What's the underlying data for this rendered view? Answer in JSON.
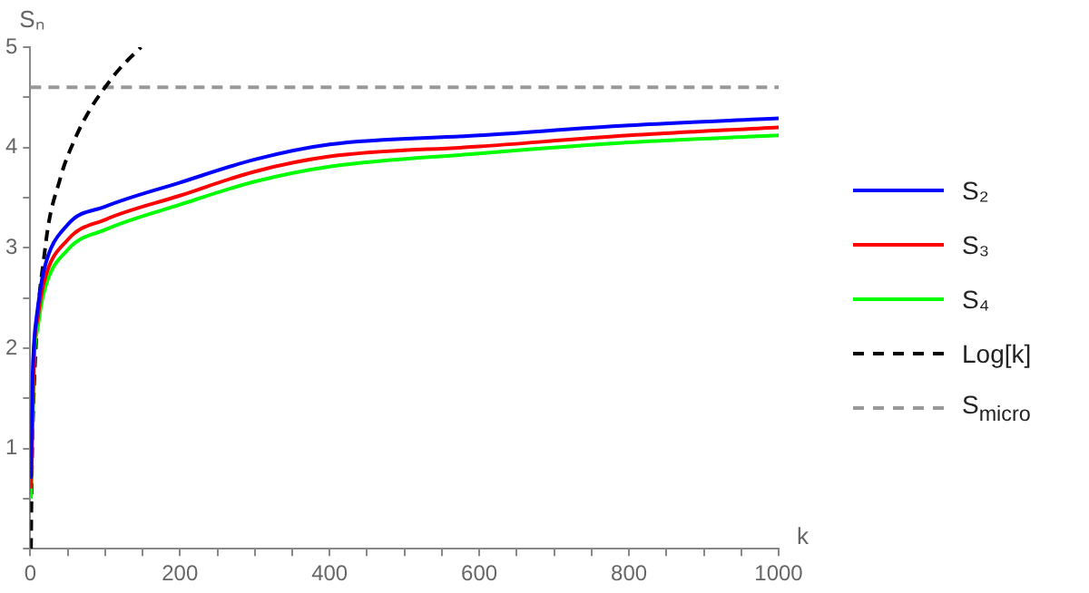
{
  "chart_data": {
    "type": "line",
    "xlabel": "k",
    "ylabel": "Sₙ",
    "xlim": [
      0,
      1000
    ],
    "ylim": [
      0,
      5
    ],
    "xticks": [
      0,
      {
        "value": 50,
        "label": null
      },
      {
        "value": 100,
        "label": null
      },
      {
        "value": 150,
        "label": null
      },
      200,
      {
        "value": 250,
        "label": null
      },
      {
        "value": 300,
        "label": null
      },
      {
        "value": 350,
        "label": null
      },
      400,
      {
        "value": 450,
        "label": null
      },
      {
        "value": 500,
        "label": null
      },
      {
        "value": 550,
        "label": null
      },
      600,
      {
        "value": 650,
        "label": null
      },
      {
        "value": 700,
        "label": null
      },
      {
        "value": 750,
        "label": null
      },
      800,
      {
        "value": 850,
        "label": null
      },
      {
        "value": 900,
        "label": null
      },
      {
        "value": 950,
        "label": null
      },
      1000
    ],
    "yticks": [
      {
        "value": 0,
        "label": null
      },
      {
        "value": 0.5,
        "label": null
      },
      1,
      {
        "value": 1.5,
        "label": null
      },
      2,
      {
        "value": 2.5,
        "label": null
      },
      3,
      {
        "value": 3.5,
        "label": null
      },
      4,
      {
        "value": 4.5,
        "label": null
      },
      5
    ],
    "grid": false,
    "legend": "right",
    "marker": "none",
    "series": [
      {
        "name": "S₂",
        "color": "#0000ff",
        "line_style": "solid",
        "x": [
          1,
          2,
          3,
          5,
          10,
          18,
          50,
          100,
          200,
          300,
          400,
          600,
          800,
          1000
        ],
        "values": [
          0.7,
          1.3,
          1.7,
          2.05,
          2.4,
          2.77,
          3.23,
          3.41,
          3.65,
          3.88,
          4.03,
          4.12,
          4.22,
          4.29
        ]
      },
      {
        "name": "S₃",
        "color": "#ff0000",
        "line_style": "solid",
        "x": [
          1,
          5,
          10,
          18,
          50,
          100,
          200,
          300,
          400,
          600,
          800,
          1000
        ],
        "values": [
          0.6,
          1.95,
          2.3,
          2.65,
          3.08,
          3.28,
          3.52,
          3.76,
          3.91,
          4.01,
          4.12,
          4.2
        ]
      },
      {
        "name": "S₄",
        "color": "#00ff00",
        "line_style": "solid",
        "x": [
          1,
          5,
          10,
          18,
          50,
          100,
          200,
          300,
          400,
          600,
          800,
          1000
        ],
        "values": [
          0.5,
          1.85,
          2.2,
          2.55,
          2.98,
          3.18,
          3.43,
          3.66,
          3.81,
          3.94,
          4.05,
          4.12
        ]
      },
      {
        "name": "Log[k]",
        "color": "#000000",
        "line_style": "dashed",
        "x": [
          1,
          2,
          5,
          20,
          40,
          60,
          80,
          100,
          120,
          148
        ],
        "values": [
          0,
          0.7,
          1.6,
          3.0,
          3.69,
          4.09,
          4.38,
          4.6,
          4.79,
          5.0
        ]
      },
      {
        "name": "S$_{micro}$",
        "color": "#999999",
        "line_style": "dashed",
        "x": [
          0,
          1000
        ],
        "values": [
          4.6,
          4.6
        ]
      }
    ]
  }
}
